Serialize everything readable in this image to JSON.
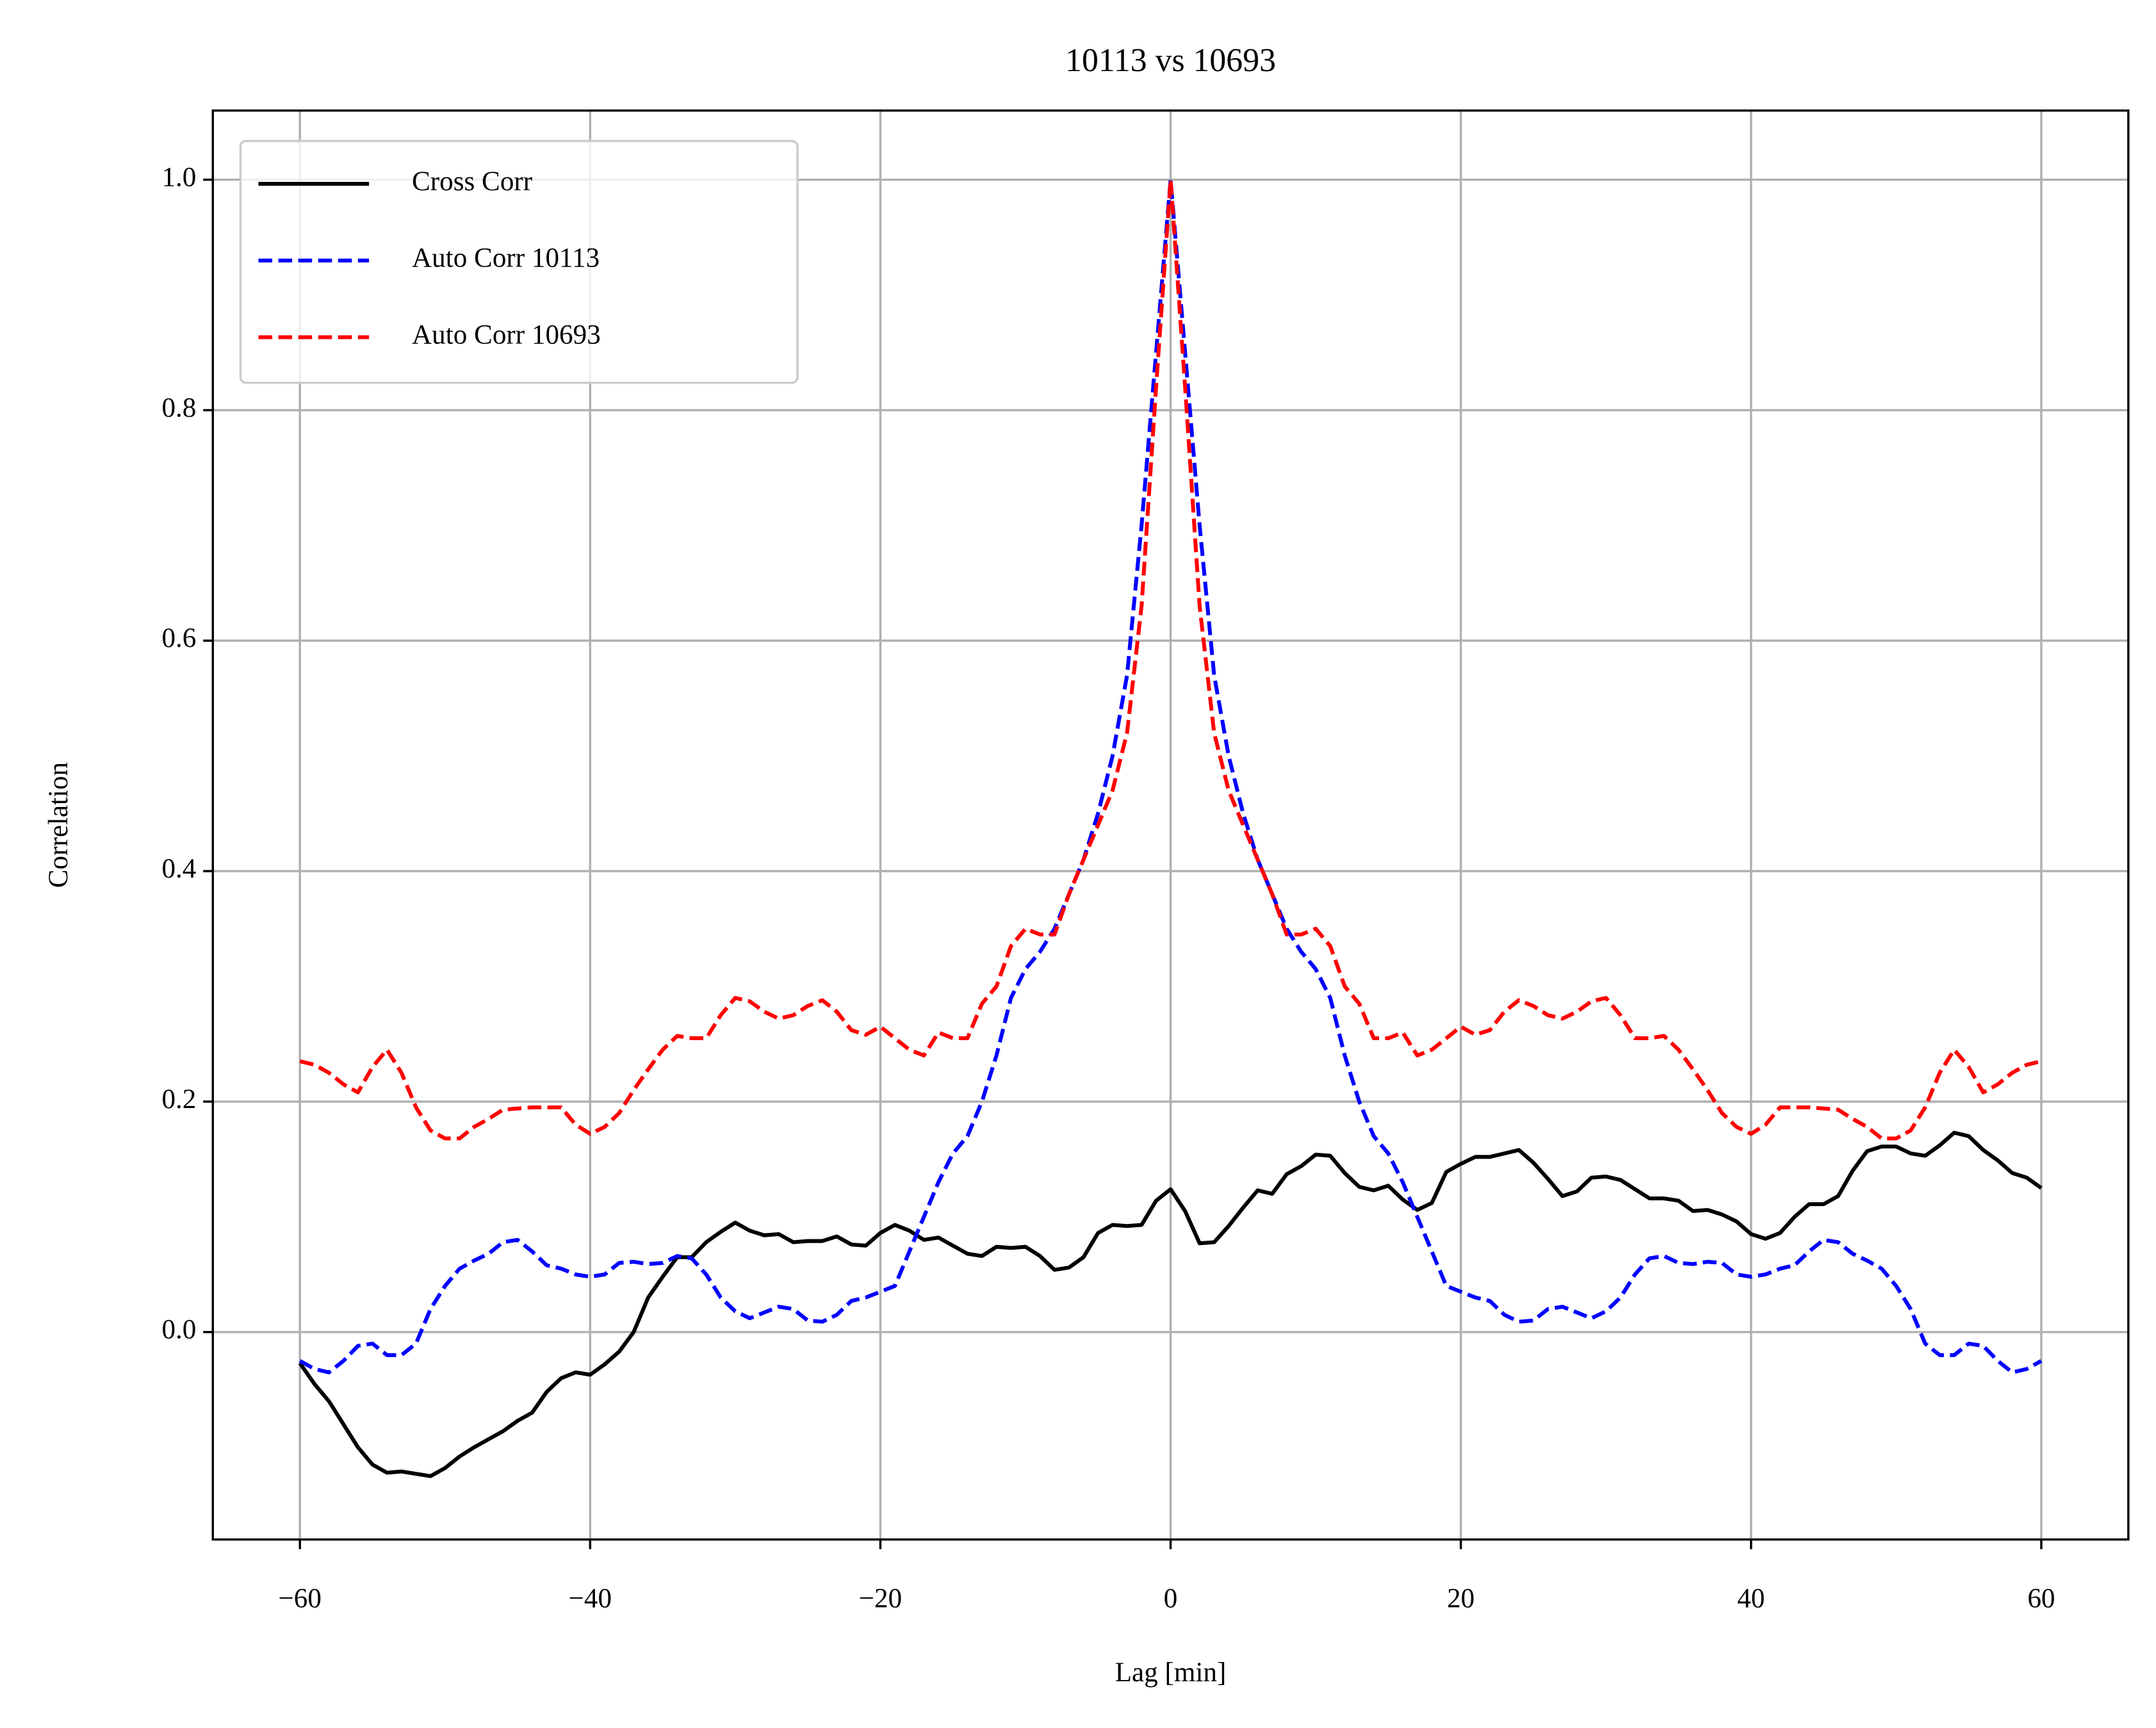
{
  "chart_data": {
    "type": "line",
    "title": "10113 vs 10693",
    "xlabel": "Lag [min]",
    "ylabel": "Correlation",
    "x": [
      -60,
      -59,
      -58,
      -57,
      -56,
      -55,
      -54,
      -53,
      -52,
      -51,
      -50,
      -49,
      -48,
      -47,
      -46,
      -45,
      -44,
      -43,
      -42,
      -41,
      -40,
      -39,
      -38,
      -37,
      -36,
      -35,
      -34,
      -33,
      -32,
      -31,
      -30,
      -29,
      -28,
      -27,
      -26,
      -25,
      -24,
      -23,
      -22,
      -21,
      -20,
      -19,
      -18,
      -17,
      -16,
      -15,
      -14,
      -13,
      -12,
      -11,
      -10,
      -9,
      -8,
      -7,
      -6,
      -5,
      -4,
      -3,
      -2,
      -1,
      0,
      1,
      2,
      3,
      4,
      5,
      6,
      7,
      8,
      9,
      10,
      11,
      12,
      13,
      14,
      15,
      16,
      17,
      18,
      19,
      20,
      21,
      22,
      23,
      24,
      25,
      26,
      27,
      28,
      29,
      30,
      31,
      32,
      33,
      34,
      35,
      36,
      37,
      38,
      39,
      40,
      41,
      42,
      43,
      44,
      45,
      46,
      47,
      48,
      49,
      50,
      51,
      52,
      53,
      54,
      55,
      56,
      57,
      58,
      59,
      60
    ],
    "series": [
      {
        "name": "Cross Corr",
        "color": "#000000",
        "dash": false,
        "values": [
          -0.027,
          -0.045,
          -0.06,
          -0.08,
          -0.1,
          -0.115,
          -0.122,
          -0.121,
          -0.123,
          -0.125,
          -0.118,
          -0.108,
          -0.1,
          -0.093,
          -0.086,
          -0.077,
          -0.07,
          -0.052,
          -0.04,
          -0.035,
          -0.037,
          -0.028,
          -0.017,
          0.0,
          0.03,
          0.048,
          0.065,
          0.065,
          0.078,
          0.087,
          0.095,
          0.088,
          0.084,
          0.085,
          0.078,
          0.079,
          0.079,
          0.083,
          0.076,
          0.075,
          0.086,
          0.093,
          0.088,
          0.08,
          0.082,
          0.075,
          0.068,
          0.066,
          0.074,
          0.073,
          0.074,
          0.066,
          0.054,
          0.056,
          0.065,
          0.086,
          0.093,
          0.092,
          0.093,
          0.114,
          0.124,
          0.105,
          0.077,
          0.078,
          0.092,
          0.108,
          0.123,
          0.12,
          0.137,
          0.144,
          0.154,
          0.153,
          0.138,
          0.126,
          0.123,
          0.127,
          0.115,
          0.106,
          0.112,
          0.139,
          0.146,
          0.152,
          0.152,
          0.155,
          0.158,
          0.147,
          0.133,
          0.118,
          0.122,
          0.134,
          0.135,
          0.132,
          0.124,
          0.116,
          0.116,
          0.114,
          0.105,
          0.106,
          0.102,
          0.096,
          0.085,
          0.081,
          0.086,
          0.1,
          0.111,
          0.111,
          0.118,
          0.14,
          0.157,
          0.161,
          0.161,
          0.155,
          0.153,
          0.162,
          0.173,
          0.17,
          0.158,
          0.149,
          0.138,
          0.134,
          0.125
        ]
      },
      {
        "name": "Auto Corr 10113",
        "color": "#0000ff",
        "dash": true,
        "values": [
          -0.025,
          -0.032,
          -0.035,
          -0.025,
          -0.012,
          -0.01,
          -0.02,
          -0.02,
          -0.01,
          0.02,
          0.04,
          0.055,
          0.062,
          0.068,
          0.078,
          0.08,
          0.07,
          0.058,
          0.055,
          0.05,
          0.048,
          0.05,
          0.06,
          0.061,
          0.059,
          0.06,
          0.066,
          0.064,
          0.05,
          0.03,
          0.018,
          0.012,
          0.017,
          0.022,
          0.02,
          0.01,
          0.009,
          0.015,
          0.027,
          0.03,
          0.035,
          0.04,
          0.07,
          0.1,
          0.13,
          0.155,
          0.17,
          0.2,
          0.24,
          0.29,
          0.315,
          0.33,
          0.35,
          0.38,
          0.41,
          0.45,
          0.5,
          0.57,
          0.7,
          0.85,
          1.0,
          0.85,
          0.7,
          0.57,
          0.5,
          0.45,
          0.41,
          0.38,
          0.35,
          0.33,
          0.315,
          0.29,
          0.24,
          0.2,
          0.17,
          0.155,
          0.13,
          0.1,
          0.07,
          0.04,
          0.035,
          0.03,
          0.027,
          0.015,
          0.009,
          0.01,
          0.02,
          0.022,
          0.017,
          0.012,
          0.018,
          0.03,
          0.05,
          0.064,
          0.066,
          0.06,
          0.059,
          0.061,
          0.06,
          0.05,
          0.048,
          0.05,
          0.055,
          0.058,
          0.07,
          0.08,
          0.078,
          0.068,
          0.062,
          0.055,
          0.04,
          0.02,
          -0.01,
          -0.02,
          -0.02,
          -0.01,
          -0.012,
          -0.025,
          -0.035,
          -0.032,
          -0.025
        ]
      },
      {
        "name": "Auto Corr 10693",
        "color": "#ff0000",
        "dash": true,
        "values": [
          0.235,
          0.232,
          0.225,
          0.215,
          0.208,
          0.23,
          0.245,
          0.225,
          0.195,
          0.175,
          0.168,
          0.168,
          0.178,
          0.185,
          0.193,
          0.194,
          0.195,
          0.195,
          0.195,
          0.18,
          0.172,
          0.178,
          0.19,
          0.21,
          0.228,
          0.245,
          0.257,
          0.255,
          0.255,
          0.275,
          0.29,
          0.287,
          0.278,
          0.272,
          0.275,
          0.283,
          0.288,
          0.278,
          0.262,
          0.258,
          0.265,
          0.255,
          0.245,
          0.24,
          0.26,
          0.255,
          0.255,
          0.285,
          0.3,
          0.335,
          0.35,
          0.345,
          0.345,
          0.38,
          0.41,
          0.44,
          0.47,
          0.52,
          0.63,
          0.82,
          1.0,
          0.82,
          0.63,
          0.52,
          0.47,
          0.44,
          0.41,
          0.38,
          0.345,
          0.345,
          0.35,
          0.335,
          0.3,
          0.285,
          0.255,
          0.255,
          0.26,
          0.24,
          0.245,
          0.255,
          0.265,
          0.258,
          0.262,
          0.278,
          0.288,
          0.283,
          0.275,
          0.272,
          0.278,
          0.287,
          0.29,
          0.275,
          0.255,
          0.255,
          0.257,
          0.245,
          0.228,
          0.21,
          0.19,
          0.178,
          0.172,
          0.18,
          0.195,
          0.195,
          0.195,
          0.194,
          0.193,
          0.185,
          0.178,
          0.168,
          0.168,
          0.175,
          0.195,
          0.225,
          0.245,
          0.23,
          0.208,
          0.215,
          0.225,
          0.232,
          0.235
        ]
      }
    ],
    "xlim": [
      -66,
      66
    ],
    "ylim": [
      -0.18,
      1.06
    ],
    "xticks": [
      {
        "value": -60,
        "label": "−60"
      },
      {
        "value": -40,
        "label": "−40"
      },
      {
        "value": -20,
        "label": "−20"
      },
      0,
      20,
      40,
      60
    ],
    "yticks": [
      {
        "value": 0,
        "label": "0.0"
      },
      {
        "value": 0.2,
        "label": "0.2"
      },
      {
        "value": 0.4,
        "label": "0.4"
      },
      {
        "value": 0.6,
        "label": "0.6"
      },
      {
        "value": 0.8,
        "label": "0.8"
      },
      {
        "value": 1,
        "label": "1.0"
      }
    ],
    "grid": true,
    "legend": "upper-left"
  }
}
